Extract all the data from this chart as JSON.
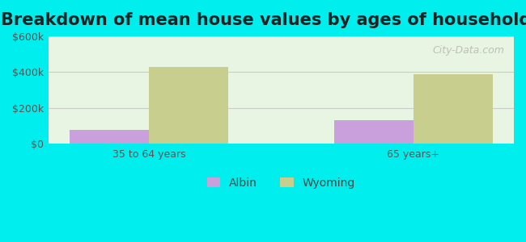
{
  "title": "Breakdown of mean house values by ages of householders",
  "categories": [
    "35 to 64 years",
    "65 years+"
  ],
  "series": [
    {
      "label": "Albin",
      "values": [
        75000,
        133000
      ],
      "color": "#c9a0dc"
    },
    {
      "label": "Wyoming",
      "values": [
        430000,
        390000
      ],
      "color": "#c8cf8e"
    }
  ],
  "ylim": [
    0,
    600000
  ],
  "yticks": [
    0,
    200000,
    400000,
    600000
  ],
  "ytick_labels": [
    "$0",
    "$200k",
    "$400k",
    "$600k"
  ],
  "background_color": "#00eeee",
  "plot_bg_gradient_top": "#e8f5e8",
  "plot_bg_gradient_bottom": "#f5fff5",
  "title_fontsize": 15,
  "axis_label_fontsize": 10,
  "legend_fontsize": 10,
  "bar_width": 0.3,
  "watermark": "City-Data.com"
}
